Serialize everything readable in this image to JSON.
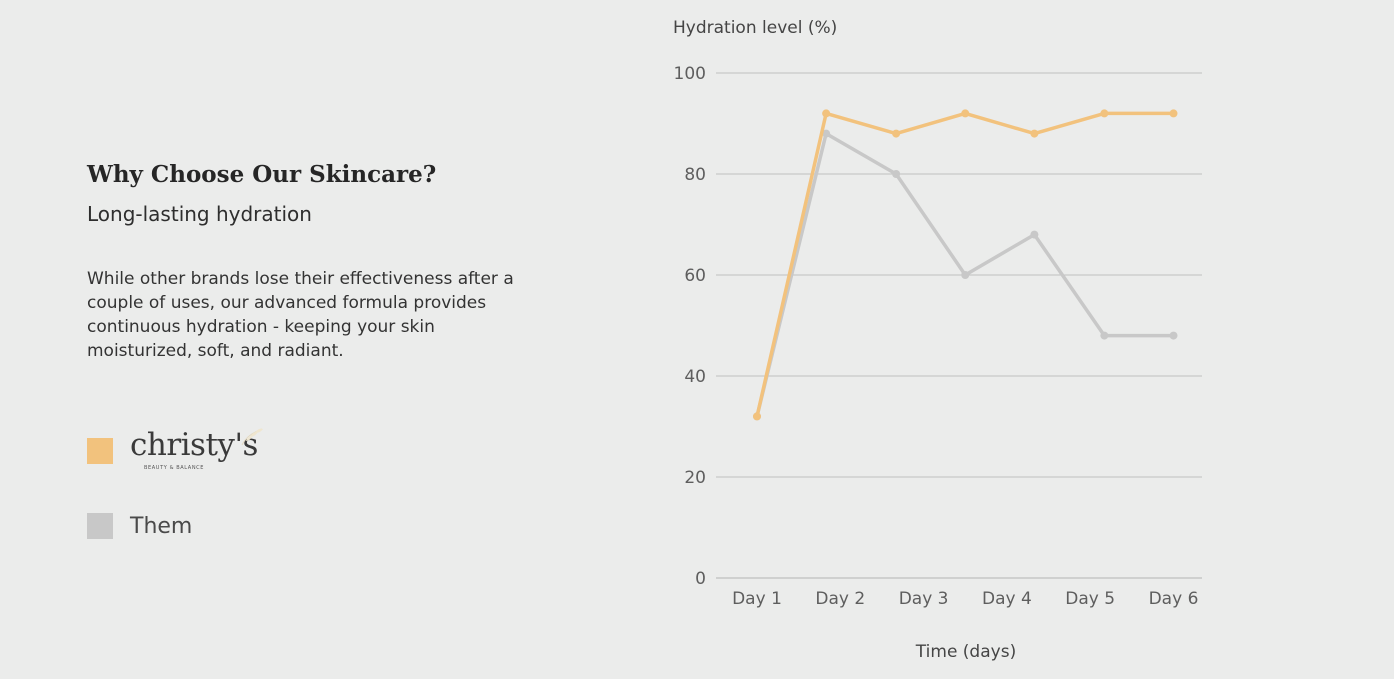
{
  "content": {
    "heading": "Why Choose Our Skincare?",
    "subheading": "Long-lasting hydration",
    "body": "While other brands lose their effectiveness after a couple of uses, our advanced formula provides continuous hydration - keeping your skin moisturized, soft, and radiant."
  },
  "legend": {
    "logo_icon": "christys-logo",
    "logo_word": "christy's",
    "logo_tagline": "BEAUTY & BALANCE",
    "them_label": "Them"
  },
  "colors": {
    "christys": "#f2c27d",
    "them": "#c8c8c8",
    "background": "#ebeceb"
  },
  "chart_data": {
    "type": "line",
    "xlabel": "Time (days)",
    "ylabel": "Hydration level (%)",
    "categories": [
      "Day 1",
      "Day 2",
      "Day 3",
      "Day 4",
      "Day 5",
      "Day 6"
    ],
    "x": [
      1,
      1.83,
      2.67,
      3.5,
      4.33,
      5.17,
      6
    ],
    "ylim": [
      0,
      100
    ],
    "yticks": [
      0,
      20,
      40,
      60,
      80,
      100
    ],
    "grid": true,
    "legend_position": "left",
    "series": [
      {
        "key": "christys",
        "values": [
          32,
          92,
          88,
          92,
          88,
          92,
          92
        ]
      },
      {
        "name": "Them",
        "key": "them",
        "values": [
          32,
          88,
          80,
          60,
          68,
          48,
          48
        ]
      }
    ]
  }
}
